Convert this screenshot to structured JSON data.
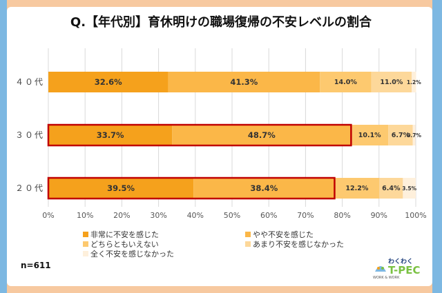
{
  "title": "Q.【年代別】育休明けの職場復帰の不安レベルの割合",
  "sample_size": "n=611",
  "logo": {
    "top": "わくわく",
    "main": "T-PEC",
    "sub": "WORK & WORK"
  },
  "colors": {
    "s1": "#f5a11c",
    "s2": "#fbb748",
    "s3": "#fdc96f",
    "s4": "#fdd89a",
    "s5": "#fef0dc",
    "highlight": "#c00000",
    "frame_orange": "#f7c9a0",
    "frame_blue": "#7db8e2"
  },
  "chart_data": {
    "type": "bar",
    "orientation": "horizontal-stacked-100",
    "categories": [
      "４０代",
      "３０代",
      "２０代"
    ],
    "series": [
      {
        "name": "非常に不安を感じた",
        "values": [
          32.6,
          33.7,
          39.5
        ],
        "labels": [
          "32.6%",
          "33.7%",
          "39.5%"
        ]
      },
      {
        "name": "やや不安を感じた",
        "values": [
          41.3,
          48.7,
          38.4
        ],
        "labels": [
          "41.3%",
          "48.7%",
          "38.4%"
        ]
      },
      {
        "name": "どちらともいえない",
        "values": [
          14.0,
          10.1,
          12.2
        ],
        "labels": [
          "14.0%",
          "10.1%",
          "12.2%"
        ]
      },
      {
        "name": "あまり不安を感じなかった",
        "values": [
          11.0,
          6.7,
          6.4
        ],
        "labels": [
          "11.0%",
          "6.7%",
          "6.4%"
        ]
      },
      {
        "name": "全く不安を感じなかった",
        "values": [
          1.2,
          0.7,
          3.5
        ],
        "labels": [
          "1.2%",
          "0.7%",
          "3.5%"
        ]
      }
    ],
    "x_ticks": [
      "0%",
      "10%",
      "20%",
      "30%",
      "40%",
      "50%",
      "60%",
      "70%",
      "80%",
      "90%",
      "100%"
    ],
    "xlim": [
      0,
      100
    ],
    "highlighted_categories": [
      "３０代",
      "２０代"
    ],
    "legend_position": "bottom",
    "grid": true
  }
}
